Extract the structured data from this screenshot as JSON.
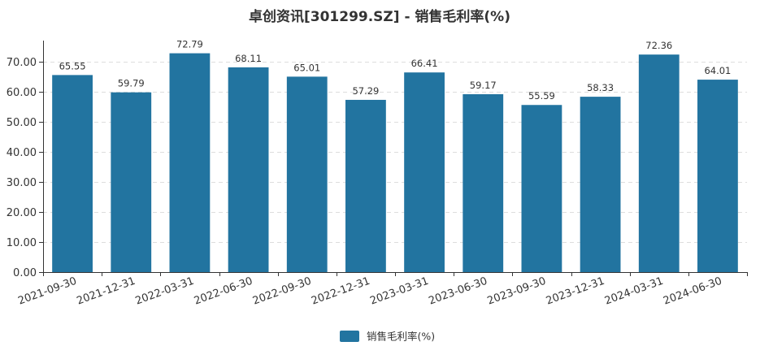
{
  "chart_data": {
    "type": "bar",
    "title": "卓创资讯[301299.SZ] - 销售毛利率(%)",
    "xlabel": "",
    "ylabel": "",
    "categories": [
      "2021-09-30",
      "2021-12-31",
      "2022-03-31",
      "2022-06-30",
      "2022-09-30",
      "2022-12-31",
      "2023-03-31",
      "2023-06-30",
      "2023-09-30",
      "2023-12-31",
      "2024-03-31",
      "2024-06-30"
    ],
    "series": [
      {
        "name": "销售毛利率(%)",
        "values": [
          65.55,
          59.79,
          72.79,
          68.11,
          65.01,
          57.29,
          66.41,
          59.17,
          55.59,
          58.33,
          72.36,
          64.01
        ],
        "labels": [
          "65.55",
          "59.79",
          "72.79",
          "68.11",
          "65.01",
          "57.29",
          "66.41",
          "59.17",
          "55.59",
          "58.33",
          "72.36",
          "64.01"
        ],
        "color": "#2274a0"
      }
    ],
    "ylim": [
      0,
      77
    ],
    "yticks": [
      0,
      10,
      20,
      30,
      40,
      50,
      60,
      70
    ],
    "ytick_labels": [
      "0.00",
      "10.00",
      "20.00",
      "30.00",
      "40.00",
      "50.00",
      "60.00",
      "70.00"
    ],
    "grid": "horizontal-dashed",
    "legend": "bottom-center"
  }
}
